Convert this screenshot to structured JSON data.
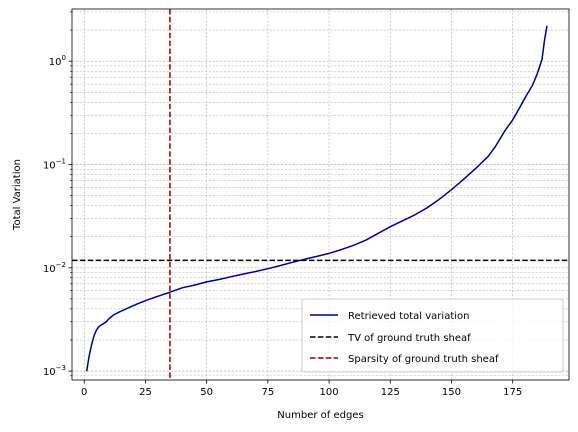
{
  "chart_data": {
    "type": "line",
    "xlabel": "Number of edges",
    "ylabel": "Total Variation",
    "xlim": [
      -5,
      198
    ],
    "ylim": [
      0.00082,
      3.2
    ],
    "yscale": "log",
    "grid": true,
    "grid_minor": true,
    "legend_position": "lower-right",
    "x_ticks": [
      0,
      25,
      50,
      75,
      100,
      125,
      150,
      175
    ],
    "x_tick_labels": [
      "0",
      "25",
      "50",
      "75",
      "100",
      "125",
      "150",
      "175"
    ],
    "y_ticks": [
      0.001,
      0.01,
      0.1,
      1
    ],
    "y_tick_labels": [
      "10",
      "10",
      "10",
      "10"
    ],
    "y_tick_exponents": [
      "−3",
      "−2",
      "−1",
      "0"
    ],
    "series": [
      {
        "name": "Retrieved total variation",
        "color": "#00008b",
        "style": "solid",
        "x": [
          1,
          2,
          3,
          4,
          5,
          6,
          7,
          8,
          9,
          10,
          12,
          15,
          20,
          22,
          25,
          30,
          35,
          40,
          45,
          50,
          55,
          60,
          65,
          70,
          75,
          80,
          85,
          90,
          95,
          100,
          105,
          110,
          115,
          120,
          125,
          130,
          135,
          140,
          145,
          150,
          155,
          160,
          165,
          168,
          170,
          172,
          175,
          178,
          180,
          183,
          185,
          187,
          188,
          189
        ],
        "y": [
          0.001,
          0.0014,
          0.0018,
          0.0022,
          0.0025,
          0.0027,
          0.0028,
          0.0029,
          0.003,
          0.0032,
          0.0035,
          0.0038,
          0.0043,
          0.0045,
          0.0048,
          0.0053,
          0.0058,
          0.0064,
          0.0068,
          0.0073,
          0.0077,
          0.0082,
          0.0087,
          0.0092,
          0.0098,
          0.0105,
          0.0113,
          0.0121,
          0.0129,
          0.0138,
          0.015,
          0.0165,
          0.0185,
          0.0215,
          0.025,
          0.0285,
          0.0325,
          0.038,
          0.046,
          0.057,
          0.072,
          0.092,
          0.12,
          0.15,
          0.18,
          0.215,
          0.27,
          0.36,
          0.44,
          0.58,
          0.75,
          1.05,
          1.6,
          2.2
        ]
      },
      {
        "name": "TV of ground truth sheaf",
        "color": "#000000",
        "style": "dashed",
        "orientation": "horizontal",
        "y": 0.0118
      },
      {
        "name": "Sparsity of ground truth sheaf",
        "color": "#8b0000",
        "style": "dashed",
        "orientation": "vertical",
        "x": 35
      }
    ]
  }
}
